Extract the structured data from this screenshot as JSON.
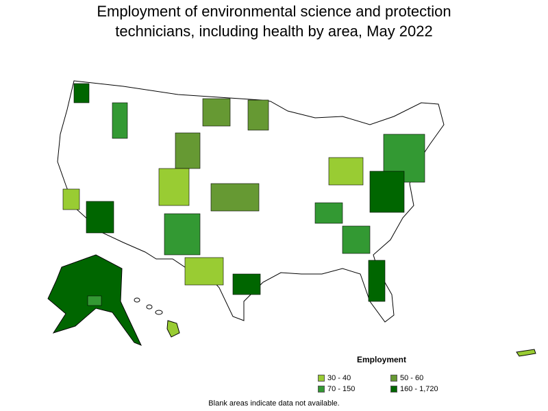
{
  "title_line1": "Employment of environmental science and protection",
  "title_line2": "technicians, including health by area, May 2022",
  "legend": {
    "title": "Employment",
    "items": [
      {
        "label": "30 - 40",
        "color": "#99cc33"
      },
      {
        "label": "50 - 60",
        "color": "#669933"
      },
      {
        "label": "70 - 150",
        "color": "#339933"
      },
      {
        "label": "160 - 1,720",
        "color": "#006600"
      }
    ]
  },
  "footnote": "Blank areas indicate data not available."
}
